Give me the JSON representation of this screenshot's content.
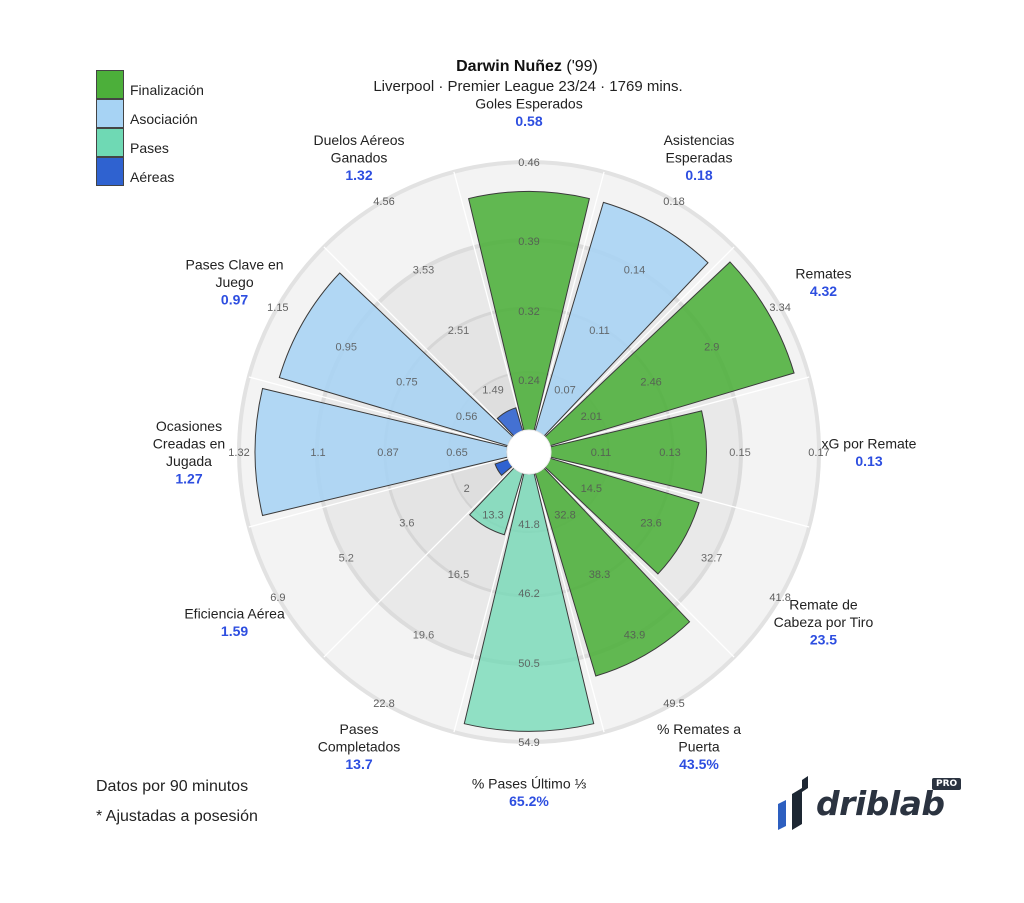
{
  "header": {
    "player_name": "Darwin Nuñez",
    "birth_year": " ('99)",
    "subtitle": "Liverpool · Premier League 23/24 · 1769 mins."
  },
  "legend": [
    {
      "label": "Finalización",
      "color": "#4caf3a"
    },
    {
      "label": "Asociación",
      "color": "#a7d3f4"
    },
    {
      "label": "Pases",
      "color": "#6fd9b4"
    },
    {
      "label": "Aéreas",
      "color": "#2f62d0"
    }
  ],
  "footnotes": {
    "line1": "Datos por 90 minutos",
    "line2": "* Ajustadas a posesión"
  },
  "logo": {
    "text": "driblab",
    "badge": "PRO",
    "icon": "driblab-logo-icon"
  },
  "colors": {
    "value_blue": "#2d4ee0",
    "ring_dark": "#e6e6e6",
    "ring_light": "#f2f2f2"
  },
  "chart_data": {
    "type": "polar-bar",
    "levels": 5,
    "metrics": [
      {
        "label": [
          "Goles Esperados"
        ],
        "value": "0.58",
        "percentile": 0.89,
        "group": "Finalización",
        "ticks": [
          "0.24",
          "0.32",
          "0.39",
          "0.46"
        ]
      },
      {
        "label": [
          "Asistencias",
          "Esperadas"
        ],
        "value": "0.18",
        "percentile": 0.89,
        "group": "Asociación",
        "ticks": [
          "0.07",
          "0.11",
          "0.14",
          "0.18"
        ]
      },
      {
        "label": [
          "Remates"
        ],
        "value": "4.32",
        "percentile": 0.95,
        "group": "Finalización",
        "ticks": [
          "2.01",
          "2.46",
          "2.9",
          "3.34"
        ]
      },
      {
        "label": [
          "xG por Remate"
        ],
        "value": "0.13",
        "percentile": 0.58,
        "group": "Finalización",
        "ticks": [
          "0.11",
          "0.13",
          "0.15",
          "0.17"
        ]
      },
      {
        "label": [
          "Remate de",
          "Cabeza por Tiro"
        ],
        "value": "23.5",
        "percentile": 0.58,
        "group": "Finalización",
        "ticks": [
          "14.5",
          "23.6",
          "32.7",
          "41.8"
        ]
      },
      {
        "label": [
          "% Remates a",
          "Puerta"
        ],
        "value": "43.5%",
        "percentile": 0.79,
        "group": "Finalización",
        "ticks": [
          "32.8",
          "38.3",
          "43.9",
          "49.5"
        ]
      },
      {
        "label": [
          "% Pases Último ⅓"
        ],
        "value": "65.2%",
        "percentile": 0.96,
        "group": "Pases",
        "ticks": [
          "41.8",
          "46.2",
          "50.5",
          "54.9"
        ]
      },
      {
        "label": [
          "Pases",
          "Completados"
        ],
        "value": "13.7",
        "percentile": 0.24,
        "group": "Pases",
        "ticks": [
          "13.3",
          "16.5",
          "19.6",
          "22.8"
        ]
      },
      {
        "label": [
          "Eficiencia Aérea"
        ],
        "value": "1.59",
        "percentile": 0.0,
        "group": "Aéreas",
        "ticks": [
          "2",
          "3.6",
          "5.2",
          "6.9"
        ]
      },
      {
        "label": [
          "Ocasiones",
          "Creadas en",
          "Jugada"
        ],
        "value": "1.27",
        "percentile": 0.94,
        "group": "Asociación",
        "ticks": [
          "0.65",
          "0.87",
          "1.1",
          "1.32"
        ]
      },
      {
        "label": [
          "Pases Clave en",
          "Juego"
        ],
        "value": "0.97",
        "percentile": 0.89,
        "group": "Asociación",
        "ticks": [
          "0.56",
          "0.75",
          "0.95",
          "1.15"
        ]
      },
      {
        "label": [
          "Duelos Aéreos",
          "Ganados"
        ],
        "value": "1.32",
        "percentile": 0.09,
        "group": "Aéreas",
        "ticks": [
          "1.49",
          "2.51",
          "3.53",
          "4.56"
        ]
      }
    ]
  }
}
